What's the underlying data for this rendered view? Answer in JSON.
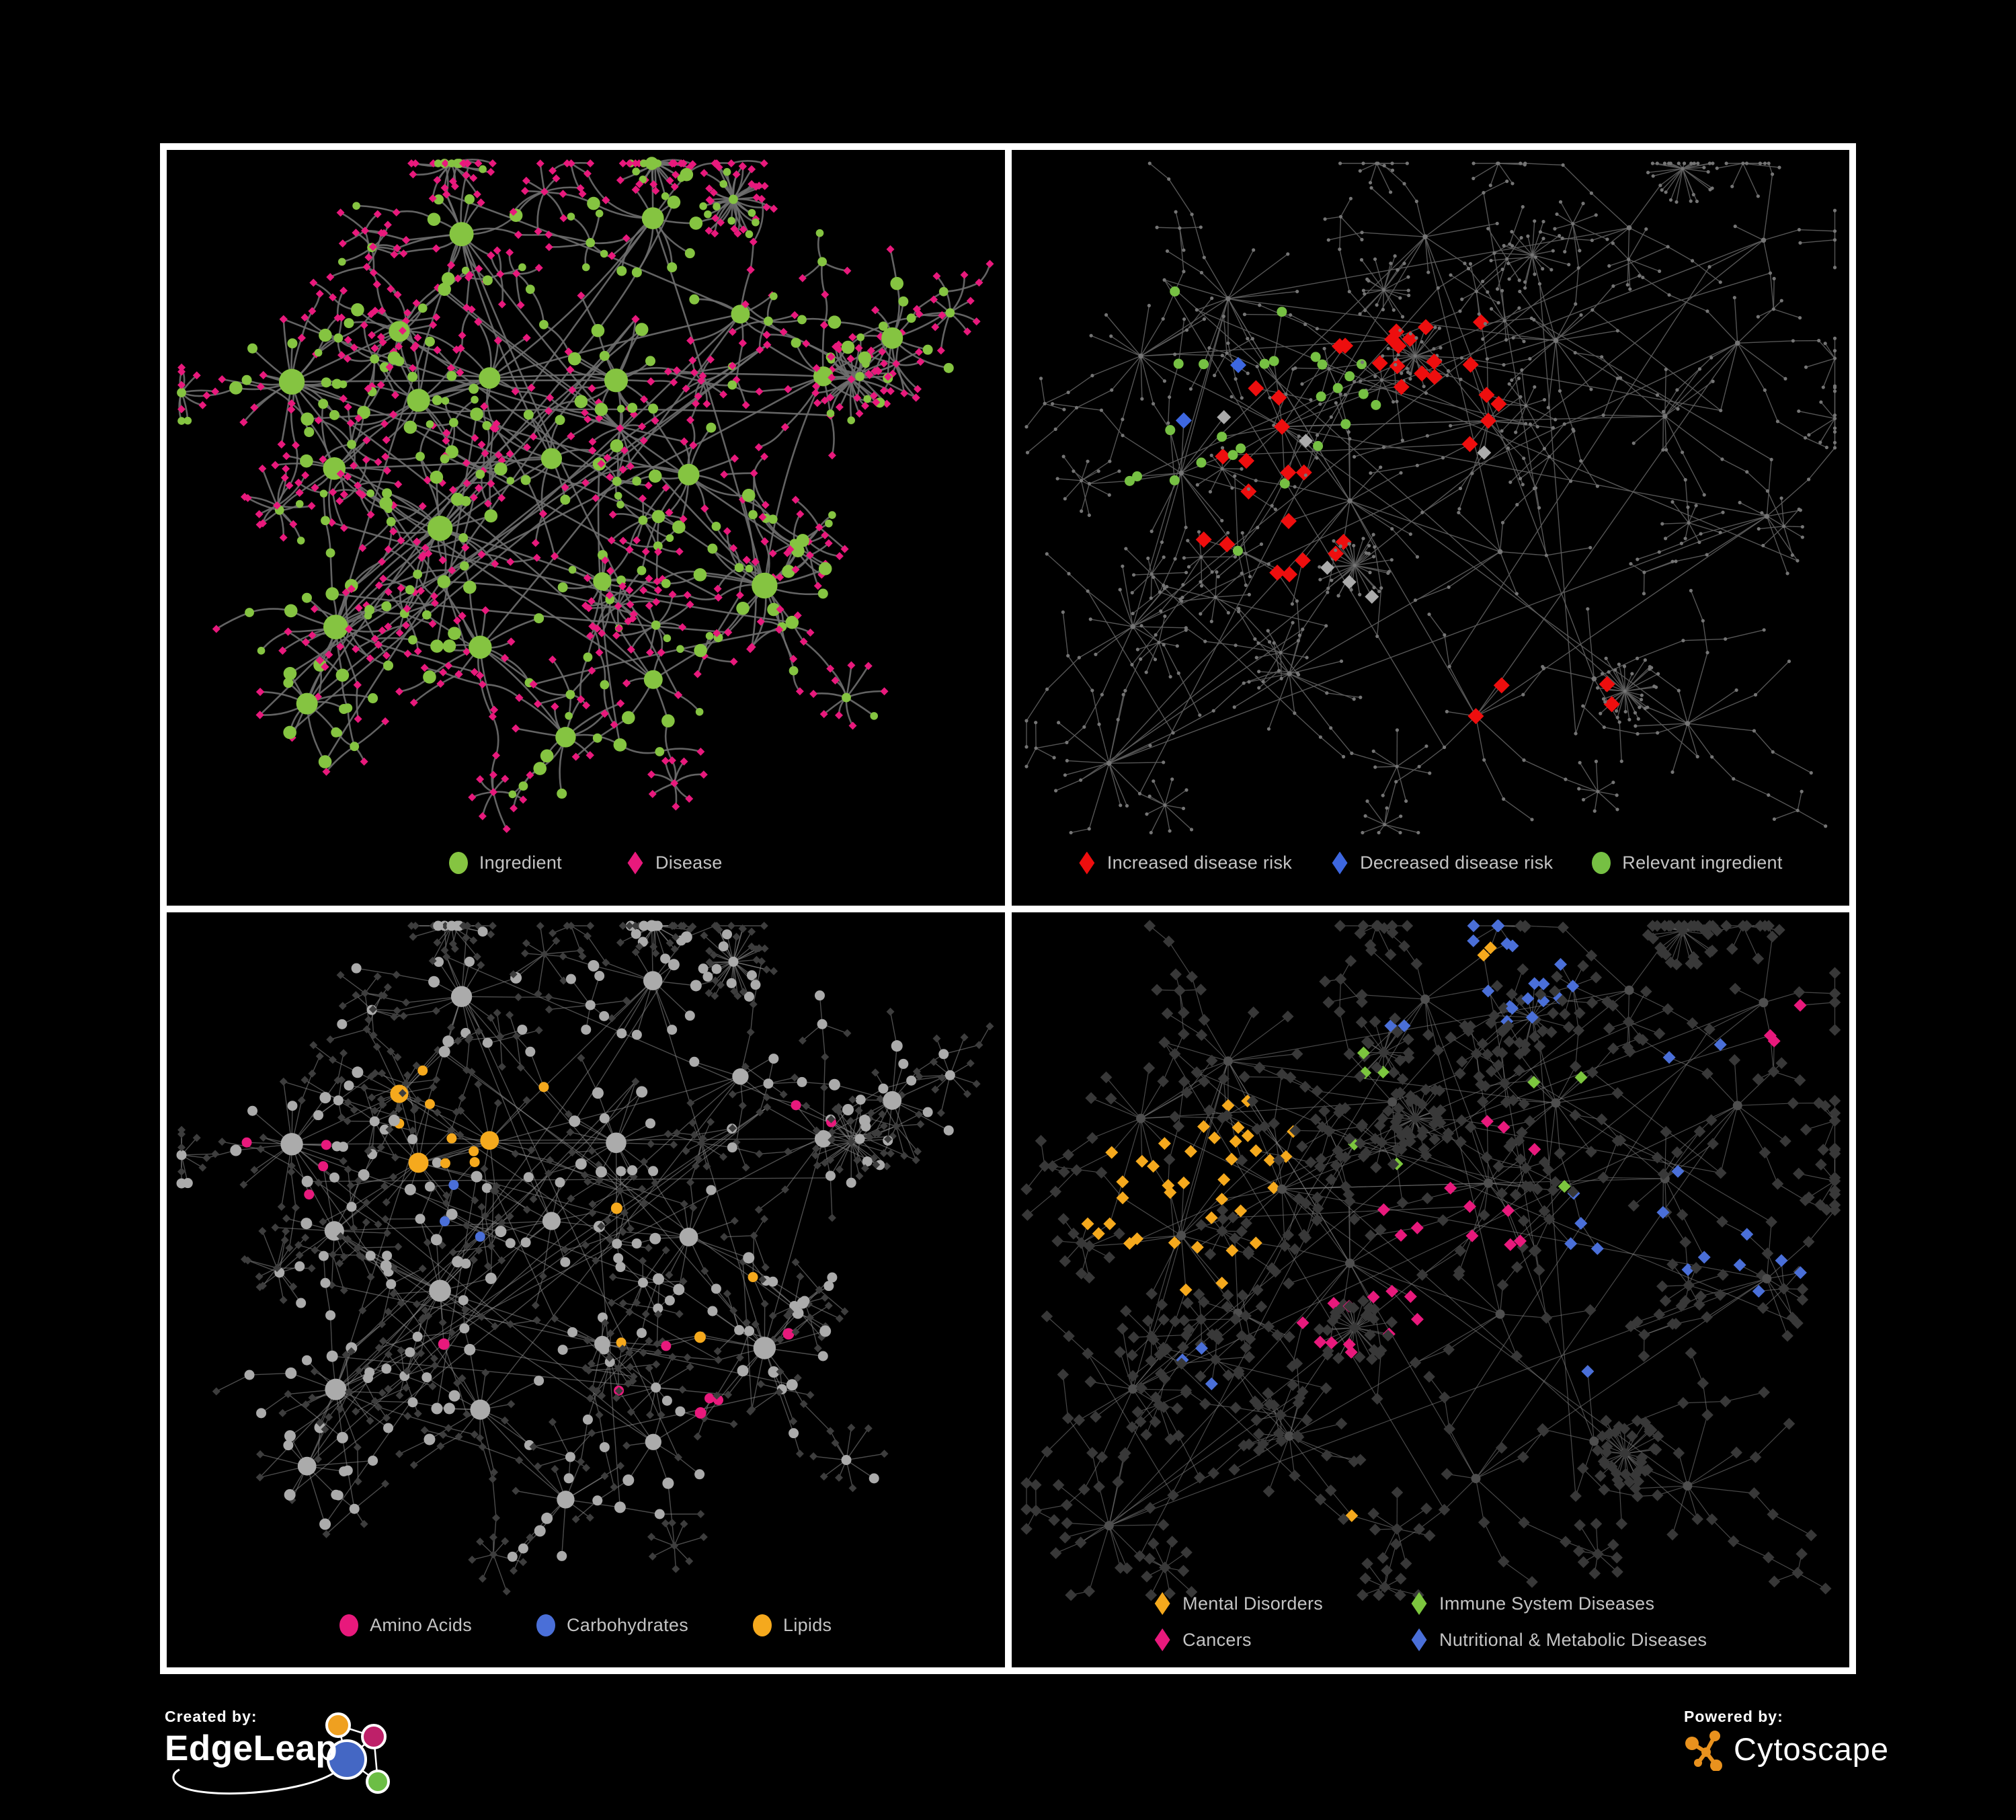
{
  "page": {
    "background": "#000000",
    "frame_color": "#ffffff",
    "legend_text_color": "#C4C4C4"
  },
  "panels": [
    {
      "name": "ingredient-disease-network",
      "edge_color": "#6E6E6E",
      "legend": [
        {
          "label": "Ingredient",
          "shape": "circle",
          "color": "#85C441"
        },
        {
          "label": "Disease",
          "shape": "diamond",
          "color": "#E8197C"
        }
      ]
    },
    {
      "name": "disease-risk-network",
      "edge_color": "#5E5E5E",
      "extra_colors": {
        "base_node": "#757575",
        "neutral_highlight": "#ABABAB"
      },
      "legend": [
        {
          "label": "Increased disease risk",
          "shape": "diamond",
          "color": "#EE0E0E"
        },
        {
          "label": "Decreased disease risk",
          "shape": "diamond",
          "color": "#3D67E0"
        },
        {
          "label": "Relevant ingredient",
          "shape": "circle",
          "color": "#76C043"
        }
      ]
    },
    {
      "name": "nutrient-class-network",
      "edge_color": "#8A8A8A",
      "extra_colors": {
        "ingredient_node": "#ABABAB",
        "disease_node": "#3D3D3D"
      },
      "legend": [
        {
          "label": "Amino Acids",
          "shape": "circle",
          "color": "#E8197C"
        },
        {
          "label": "Carbohydrates",
          "shape": "circle",
          "color": "#4A6FD8"
        },
        {
          "label": "Lipids",
          "shape": "circle",
          "color": "#F5A91D"
        }
      ]
    },
    {
      "name": "disease-class-network",
      "edge_color": "#787878",
      "extra_colors": {
        "disease_node": "#383838",
        "ingredient_node": "#4E4E4E"
      },
      "legend": [
        {
          "label": "Mental Disorders",
          "shape": "diamond",
          "color": "#F5A91D"
        },
        {
          "label": "Immune System Diseases",
          "shape": "diamond",
          "color": "#7CC63E"
        },
        {
          "label": "Cancers",
          "shape": "diamond",
          "color": "#E8197C"
        },
        {
          "label": "Nutritional & Metabolic Diseases",
          "shape": "diamond",
          "color": "#4A6FD8"
        }
      ]
    }
  ],
  "footer": {
    "created_by_label": "Created by:",
    "created_by_brand": "EdgeLeap",
    "powered_by_label": "Powered by:",
    "powered_by_brand": "Cytoscape",
    "edgeleap_colors": {
      "orange": "#EFA020",
      "magenta": "#BE2069",
      "blue": "#4467C4",
      "green": "#6CBE45"
    },
    "cytoscape_color": "#E9921E"
  }
}
